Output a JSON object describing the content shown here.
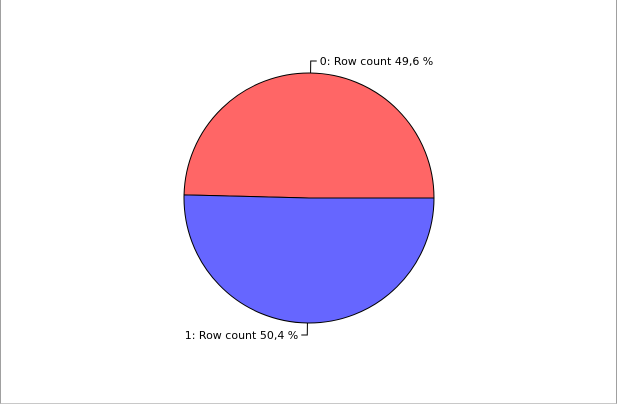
{
  "chart_data": {
    "type": "pie",
    "title": "",
    "slices": [
      {
        "category": "0",
        "measure": "Row count",
        "percent": 49.6,
        "label": "0: Row count 49,6 %",
        "color": "#FF6666"
      },
      {
        "category": "1",
        "measure": "Row count",
        "percent": 50.4,
        "label": "1: Row count 50,4 %",
        "color": "#6666FF"
      }
    ],
    "start_angle_deg": 0,
    "direction": "counterclockwise",
    "outline_color": "#000000",
    "legend": "none"
  }
}
